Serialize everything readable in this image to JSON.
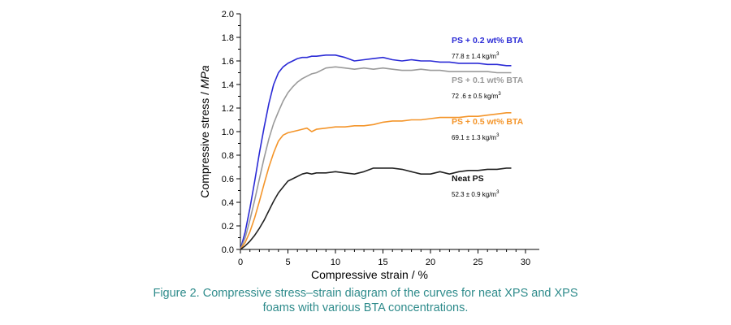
{
  "chart_data": {
    "type": "line",
    "xlabel": "Compressive strain / %",
    "ylabel": "Compressive stress / MPa",
    "xlim": [
      0,
      30
    ],
    "ylim": [
      0,
      2.0
    ],
    "xticks": [
      "0",
      "5",
      "10",
      "15",
      "20",
      "25",
      "30"
    ],
    "yticks": [
      "0.0",
      "0.2",
      "0.4",
      "0.6",
      "0.8",
      "1.0",
      "1.2",
      "1.4",
      "1.6",
      "1.8",
      "2.0"
    ],
    "grid": false,
    "series": [
      {
        "name": "PS + 0.2 wt% BTA",
        "density": "77.8 ± 1.4 kg/m",
        "color": "#2b2bd6",
        "label_color": "#2b2bd6",
        "x": [
          0,
          0.5,
          1,
          1.5,
          2,
          2.5,
          3,
          3.5,
          4,
          4.5,
          5,
          5.5,
          6,
          6.5,
          7,
          7.5,
          8,
          9,
          10,
          11,
          12,
          13,
          14,
          15,
          16,
          17,
          18,
          19,
          20,
          21,
          22,
          23,
          24,
          25,
          26,
          27,
          28,
          28.5
        ],
        "y": [
          0,
          0.15,
          0.35,
          0.58,
          0.82,
          1.04,
          1.24,
          1.4,
          1.5,
          1.55,
          1.58,
          1.6,
          1.62,
          1.63,
          1.63,
          1.64,
          1.64,
          1.65,
          1.65,
          1.63,
          1.6,
          1.61,
          1.62,
          1.63,
          1.61,
          1.6,
          1.61,
          1.6,
          1.6,
          1.59,
          1.59,
          1.58,
          1.58,
          1.58,
          1.57,
          1.57,
          1.56,
          1.56
        ]
      },
      {
        "name": "PS + 0.1 wt% BTA",
        "density": "72 .6 ± 0.5 kg/m",
        "color": "#9a9a9a",
        "label_color": "#9a9a9a",
        "x": [
          0,
          0.5,
          1,
          1.5,
          2,
          2.5,
          3,
          3.5,
          4,
          4.5,
          5,
          5.5,
          6,
          6.5,
          7,
          7.5,
          8,
          9,
          10,
          11,
          12,
          13,
          14,
          15,
          16,
          17,
          18,
          19,
          20,
          21,
          22,
          23,
          24,
          25,
          26,
          27,
          28,
          28.5
        ],
        "y": [
          0,
          0.1,
          0.25,
          0.42,
          0.6,
          0.78,
          0.94,
          1.07,
          1.17,
          1.26,
          1.33,
          1.38,
          1.42,
          1.45,
          1.47,
          1.49,
          1.5,
          1.54,
          1.55,
          1.54,
          1.53,
          1.54,
          1.53,
          1.54,
          1.53,
          1.52,
          1.52,
          1.53,
          1.52,
          1.52,
          1.51,
          1.51,
          1.51,
          1.51,
          1.51,
          1.5,
          1.5,
          1.5
        ]
      },
      {
        "name": "PS + 0.5 wt% BTA",
        "density": "69.1 ± 1.3 kg/m",
        "color": "#f4952a",
        "label_color": "#f4952a",
        "x": [
          0,
          0.5,
          1,
          1.5,
          2,
          2.5,
          3,
          3.5,
          4,
          4.5,
          5,
          5.5,
          6,
          6.5,
          7,
          7.5,
          8,
          9,
          10,
          11,
          12,
          13,
          14,
          15,
          16,
          17,
          18,
          19,
          20,
          21,
          22,
          23,
          24,
          25,
          26,
          27,
          28,
          28.5
        ],
        "y": [
          0,
          0.06,
          0.15,
          0.27,
          0.41,
          0.56,
          0.7,
          0.82,
          0.92,
          0.97,
          0.99,
          1.0,
          1.01,
          1.02,
          1.03,
          1.0,
          1.02,
          1.03,
          1.04,
          1.04,
          1.05,
          1.05,
          1.06,
          1.08,
          1.09,
          1.09,
          1.1,
          1.1,
          1.11,
          1.12,
          1.12,
          1.12,
          1.13,
          1.13,
          1.14,
          1.15,
          1.16,
          1.16
        ]
      },
      {
        "name": "Neat PS",
        "density": "52.3 ± 0.9 kg/m",
        "color": "#222222",
        "label_color": "#111111",
        "x": [
          0,
          0.5,
          1,
          1.5,
          2,
          2.5,
          3,
          3.5,
          4,
          4.5,
          5,
          5.5,
          6,
          6.5,
          7,
          7.5,
          8,
          9,
          10,
          11,
          12,
          13,
          14,
          15,
          16,
          17,
          18,
          19,
          20,
          21,
          22,
          23,
          24,
          25,
          26,
          27,
          28,
          28.5
        ],
        "y": [
          0,
          0.03,
          0.07,
          0.12,
          0.18,
          0.25,
          0.33,
          0.41,
          0.48,
          0.53,
          0.58,
          0.6,
          0.62,
          0.64,
          0.65,
          0.64,
          0.65,
          0.65,
          0.66,
          0.65,
          0.64,
          0.66,
          0.69,
          0.69,
          0.69,
          0.68,
          0.66,
          0.64,
          0.64,
          0.66,
          0.64,
          0.66,
          0.67,
          0.67,
          0.68,
          0.68,
          0.69,
          0.69
        ]
      }
    ],
    "unit_superscript": "3"
  },
  "caption": {
    "line1": "Figure 2. Compressive stress–strain diagram of the curves for neat XPS and XPS",
    "line2": "foams with various BTA concentrations."
  }
}
